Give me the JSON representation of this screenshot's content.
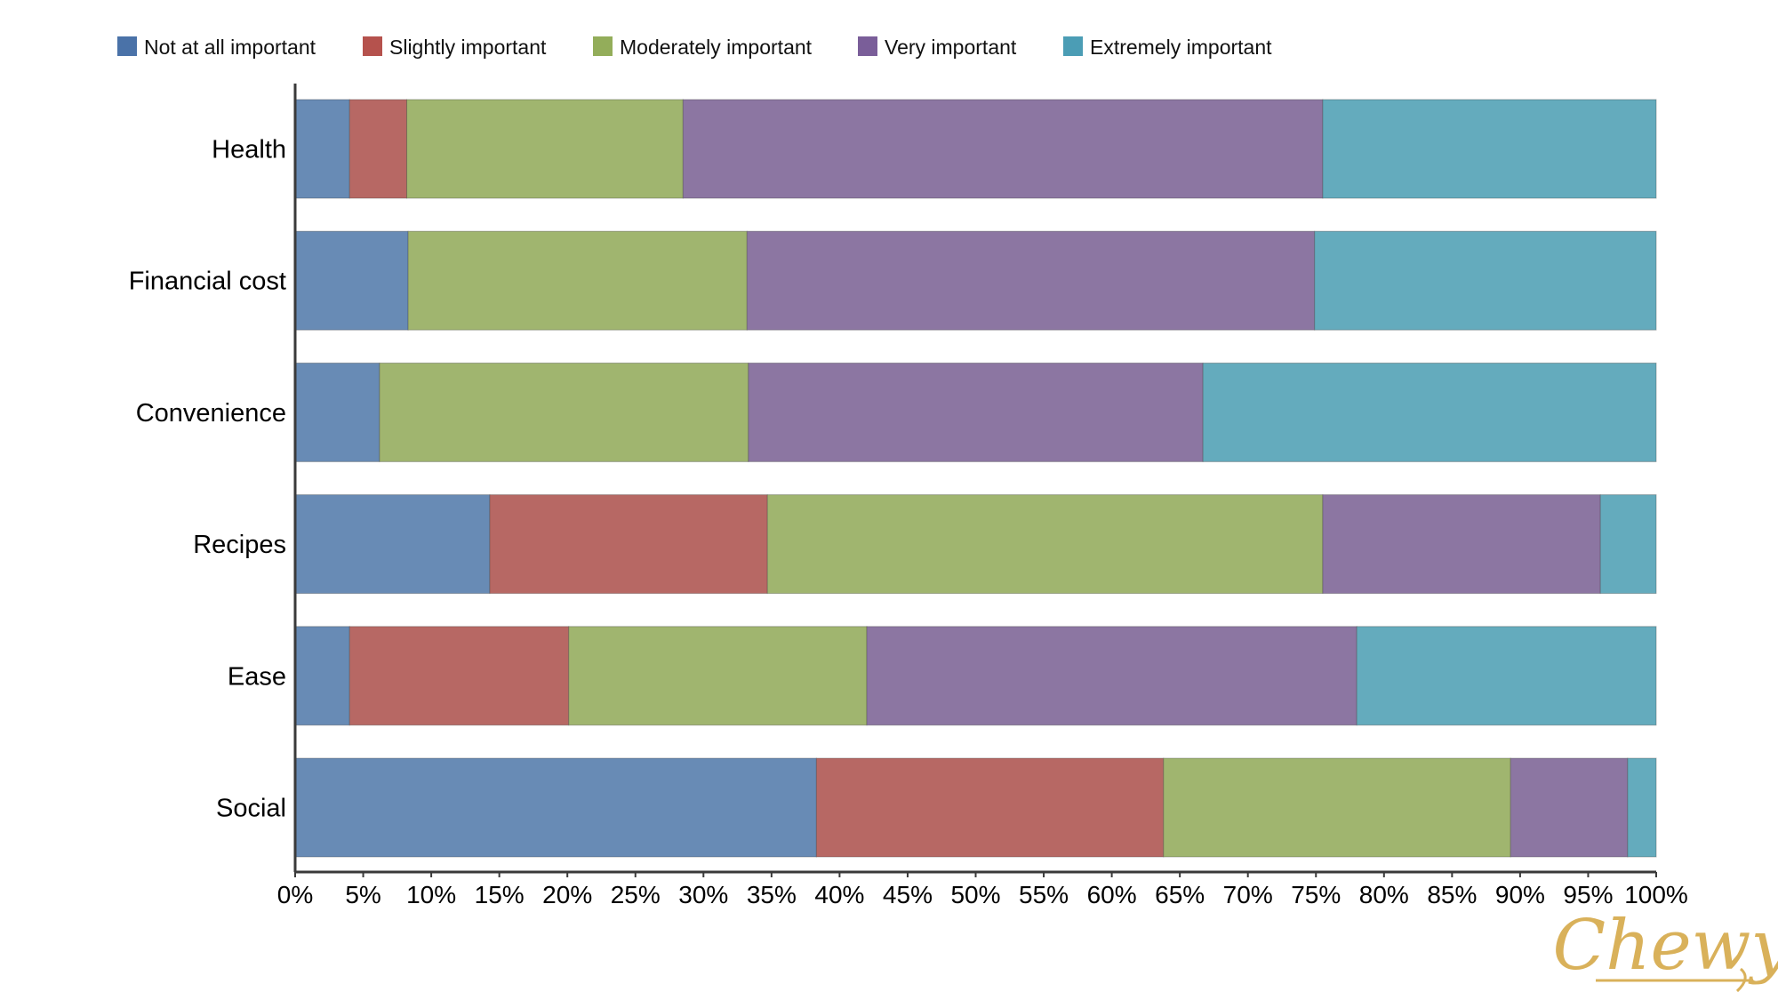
{
  "chart_data": {
    "type": "bar",
    "orientation": "horizontal",
    "stacked": true,
    "normalized": true,
    "categories": [
      "Health",
      "Financial cost",
      "Convenience",
      "Recipes",
      "Ease",
      "Social"
    ],
    "series": [
      {
        "name": "Not at all important",
        "color": "#688bb5",
        "legend_color": "#4a72a8",
        "values": [
          4,
          8.3,
          6.2,
          14.3,
          4,
          38.3
        ]
      },
      {
        "name": "Slightly important",
        "color": "#b76864",
        "legend_color": "#b5524d",
        "values": [
          4.2,
          0,
          0,
          20.4,
          16.1,
          25.5
        ]
      },
      {
        "name": "Moderately important",
        "color": "#a0b56f",
        "legend_color": "#93ad5a",
        "values": [
          20.3,
          24.9,
          27.1,
          40.8,
          21.9,
          25.5
        ]
      },
      {
        "name": "Very important",
        "color": "#8c76a2",
        "legend_color": "#7a5e99",
        "values": [
          47,
          41.7,
          33.4,
          20.4,
          36,
          8.6
        ]
      },
      {
        "name": "Extremely important",
        "color": "#64abbd",
        "legend_color": "#4b9db5",
        "values": [
          24.5,
          25.1,
          33.3,
          4.1,
          22,
          2.1
        ]
      }
    ],
    "x_ticks": [
      "0%",
      "5%",
      "10%",
      "15%",
      "20%",
      "25%",
      "30%",
      "35%",
      "40%",
      "45%",
      "50%",
      "55%",
      "60%",
      "65%",
      "70%",
      "75%",
      "80%",
      "85%",
      "90%",
      "95%",
      "100%"
    ],
    "xlim": [
      0,
      100
    ],
    "grid": false,
    "legend_position": "top-left"
  },
  "watermark": "Chewy"
}
